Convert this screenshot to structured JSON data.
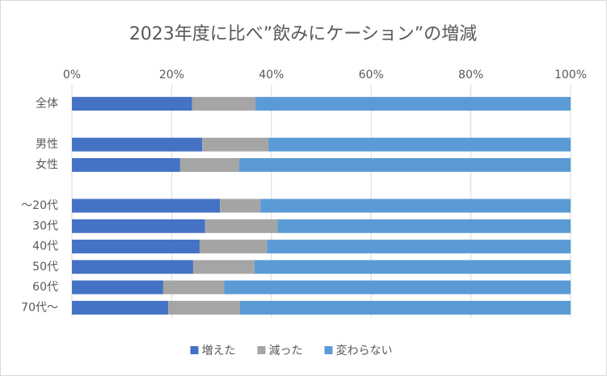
{
  "chart_data": {
    "type": "stacked-barh",
    "title": "2023年度に比べ”飲みにケーション”の増減",
    "categories": [
      "全体",
      null,
      "男性",
      "女性",
      null,
      "～20代",
      "30代",
      "40代",
      "50代",
      "60代",
      "70代～"
    ],
    "series": [
      {
        "name": "増えた",
        "color": "#4472c4",
        "values": [
          24.1,
          null,
          26.1,
          21.7,
          null,
          29.7,
          26.7,
          25.6,
          24.3,
          18.3,
          19.3
        ]
      },
      {
        "name": "減った",
        "color": "#a5a5a5",
        "values": [
          12.7,
          null,
          13.3,
          11.8,
          null,
          8.1,
          14.5,
          13.5,
          12.3,
          12.2,
          14.4
        ]
      },
      {
        "name": "変わらない",
        "color": "#5b9bd5",
        "values": [
          63.2,
          null,
          60.6,
          66.5,
          null,
          62.2,
          58.8,
          60.9,
          63.4,
          69.5,
          66.3
        ]
      }
    ],
    "xlim": [
      0,
      100
    ],
    "xticks": [
      {
        "value": 0,
        "label": "0%"
      },
      {
        "value": 20,
        "label": "20%"
      },
      {
        "value": 40,
        "label": "40%"
      },
      {
        "value": 60,
        "label": "60%"
      },
      {
        "value": 80,
        "label": "80%"
      },
      {
        "value": 100,
        "label": "100%"
      }
    ],
    "grid": true,
    "legend": "bottom"
  }
}
